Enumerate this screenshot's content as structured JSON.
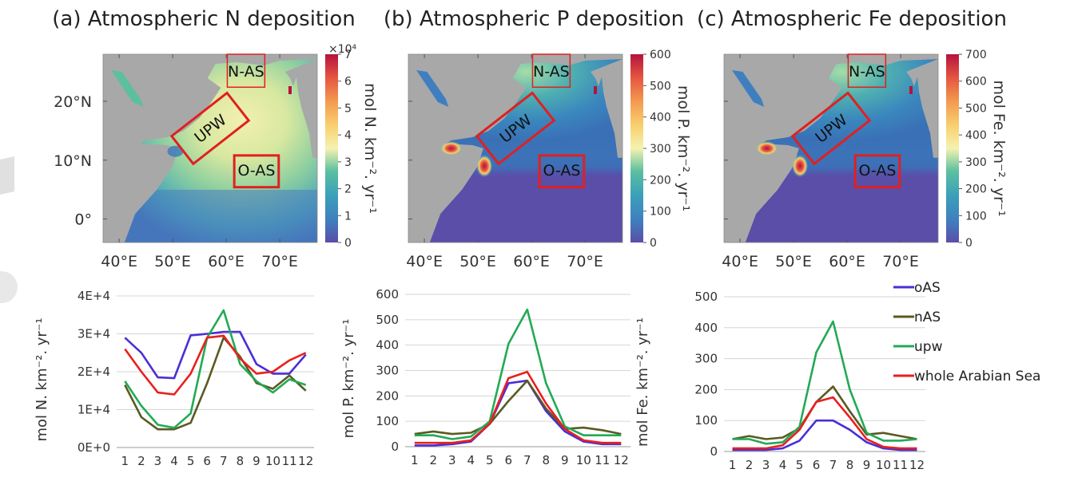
{
  "colors": {
    "oAS": "#4b2fd6",
    "nAS": "#5a5a22",
    "upw": "#22aa55",
    "whole": "#e8201e",
    "land": "#a8a8a8",
    "box": "#e02020",
    "ocean_low": "#5a4ea8"
  },
  "maps": [
    {
      "title": "(a) Atmospheric N deposition",
      "colorbar_label": "mol N. km⁻². yr⁻¹",
      "colorbar_ticks": [
        "0",
        "1",
        "2",
        "3",
        "4",
        "5",
        "6",
        "7"
      ],
      "colorbar_exponent": "×10⁴",
      "colorbar_max": 70000,
      "ylabels": [
        "20°N",
        "10°N",
        "0°"
      ],
      "xlabels": [
        "40°E",
        "50°E",
        "60°E",
        "70°E"
      ],
      "regions": [
        "N-AS",
        "UPW",
        "O-AS"
      ],
      "ocean_style": "nitrogen"
    },
    {
      "title": "(b) Atmospheric P deposition",
      "colorbar_label": "mol P. km⁻². yr⁻¹",
      "colorbar_ticks": [
        "0",
        "100",
        "200",
        "300",
        "400",
        "500",
        "600"
      ],
      "colorbar_exponent": "",
      "colorbar_max": 600,
      "ylabels": [],
      "xlabels": [
        "40°E",
        "50°E",
        "60°E",
        "70°E"
      ],
      "regions": [
        "N-AS",
        "UPW",
        "O-AS"
      ],
      "ocean_style": "dust"
    },
    {
      "title": "(c) Atmospheric Fe deposition",
      "colorbar_label": "mol Fe. km⁻². yr⁻¹",
      "colorbar_ticks": [
        "0",
        "100",
        "200",
        "300",
        "400",
        "500",
        "600",
        "700"
      ],
      "colorbar_exponent": "",
      "colorbar_max": 700,
      "ylabels": [],
      "xlabels": [
        "40°E",
        "50°E",
        "60°E",
        "70°E"
      ],
      "regions": [
        "N-AS",
        "UPW",
        "O-AS"
      ],
      "ocean_style": "dust"
    }
  ],
  "chart_data": [
    {
      "type": "line",
      "ylabel": "mol N. km⁻². yr⁻¹",
      "x": [
        1,
        2,
        3,
        4,
        5,
        6,
        7,
        8,
        9,
        10,
        11,
        12
      ],
      "ylim": [
        0,
        40000
      ],
      "yticks": [
        0,
        10000,
        20000,
        30000,
        40000
      ],
      "ytick_labels": [
        "0E+0",
        "1E+4",
        "2E+4",
        "3E+4",
        "4E+4"
      ],
      "series": [
        {
          "key": "oAS",
          "values": [
            29000,
            25000,
            18500,
            18300,
            29600,
            30000,
            30500,
            30500,
            22000,
            19500,
            19500,
            24500
          ]
        },
        {
          "key": "nAS",
          "values": [
            16500,
            8000,
            4800,
            4800,
            6500,
            17000,
            29000,
            24000,
            17000,
            15500,
            19000,
            15000
          ]
        },
        {
          "key": "upw",
          "values": [
            17500,
            11000,
            6000,
            5200,
            9000,
            29000,
            36200,
            22000,
            17500,
            14500,
            18000,
            16500
          ]
        },
        {
          "key": "whole",
          "values": [
            26000,
            20000,
            14500,
            14000,
            19500,
            29000,
            29500,
            23500,
            19500,
            20000,
            23000,
            25000
          ]
        }
      ]
    },
    {
      "type": "line",
      "ylabel": "mol P. km⁻². yr⁻¹",
      "x": [
        1,
        2,
        3,
        4,
        5,
        6,
        7,
        8,
        9,
        10,
        11,
        12
      ],
      "ylim": [
        0,
        600
      ],
      "yticks": [
        0,
        100,
        200,
        300,
        400,
        500,
        600
      ],
      "ytick_labels": [
        "0",
        "100",
        "200",
        "300",
        "400",
        "500",
        "600"
      ],
      "series": [
        {
          "key": "oAS",
          "values": [
            5,
            5,
            10,
            20,
            90,
            250,
            260,
            140,
            60,
            20,
            10,
            10
          ]
        },
        {
          "key": "nAS",
          "values": [
            50,
            60,
            50,
            55,
            90,
            180,
            260,
            150,
            70,
            75,
            65,
            50
          ]
        },
        {
          "key": "upw",
          "values": [
            45,
            45,
            30,
            40,
            100,
            405,
            540,
            250,
            80,
            45,
            45,
            45
          ]
        },
        {
          "key": "whole",
          "values": [
            15,
            15,
            15,
            25,
            90,
            270,
            295,
            170,
            70,
            25,
            15,
            15
          ]
        }
      ]
    },
    {
      "type": "line",
      "ylabel": "mol Fe. km⁻². yr⁻¹",
      "x": [
        1,
        2,
        3,
        4,
        5,
        6,
        7,
        8,
        9,
        10,
        11,
        12
      ],
      "ylim": [
        0,
        500
      ],
      "yticks": [
        0,
        100,
        200,
        300,
        400,
        500
      ],
      "ytick_labels": [
        "0",
        "100",
        "200",
        "300",
        "400",
        "500"
      ],
      "series": [
        {
          "key": "oAS",
          "values": [
            5,
            5,
            5,
            10,
            35,
            100,
            100,
            70,
            30,
            10,
            5,
            5
          ]
        },
        {
          "key": "nAS",
          "values": [
            40,
            50,
            40,
            45,
            75,
            160,
            210,
            130,
            55,
            60,
            50,
            40
          ]
        },
        {
          "key": "upw",
          "values": [
            40,
            40,
            25,
            30,
            80,
            320,
            420,
            200,
            60,
            35,
            35,
            40
          ]
        },
        {
          "key": "whole",
          "values": [
            10,
            10,
            10,
            20,
            70,
            160,
            175,
            110,
            40,
            15,
            10,
            10
          ]
        }
      ]
    }
  ],
  "legend": [
    {
      "key": "oAS",
      "label": "oAS"
    },
    {
      "key": "nAS",
      "label": "nAS"
    },
    {
      "key": "upw",
      "label": "upw"
    },
    {
      "key": "whole",
      "label": "whole Arabian Sea"
    }
  ]
}
